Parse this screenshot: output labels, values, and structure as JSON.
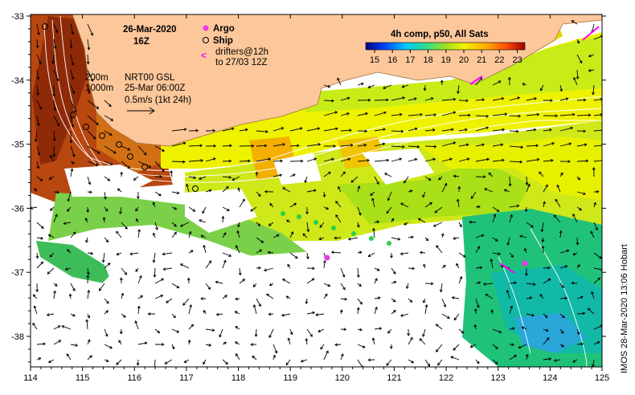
{
  "header": {
    "date": "26-Mar-2020",
    "time": "16Z"
  },
  "legend": {
    "argo_label": "Argo",
    "ship_label": "Ship",
    "drifters_line1": "drifters@12h",
    "drifters_line2": "to 27/03 12Z",
    "argo_color": "#e83be8",
    "ship_color": "#000000",
    "drifter_color": "#ff00ff"
  },
  "colorbar": {
    "title": "4h comp, p50, All Sats",
    "ticks": [
      "15",
      "16",
      "17",
      "18",
      "19",
      "20",
      "21",
      "22",
      "23"
    ]
  },
  "annotations": {
    "contour_200": "200m",
    "contour_1000": "1000m",
    "current_line1": "NRT00 GSL",
    "current_line2": "25-Mar 06:00Z",
    "current_line3": "0.5m/s (1kt 24h)"
  },
  "axes": {
    "x_ticks": [
      "114",
      "115",
      "116",
      "117",
      "118",
      "119",
      "120",
      "121",
      "122",
      "123",
      "124",
      "125"
    ],
    "y_ticks": [
      "-33",
      "-34",
      "-35",
      "-36",
      "-37",
      "-38"
    ]
  },
  "credit": "IMOS 28-Mar-2020 13:06 Hobart",
  "colors": {
    "land": "#fcc79a",
    "cloud": "#ffffff"
  }
}
